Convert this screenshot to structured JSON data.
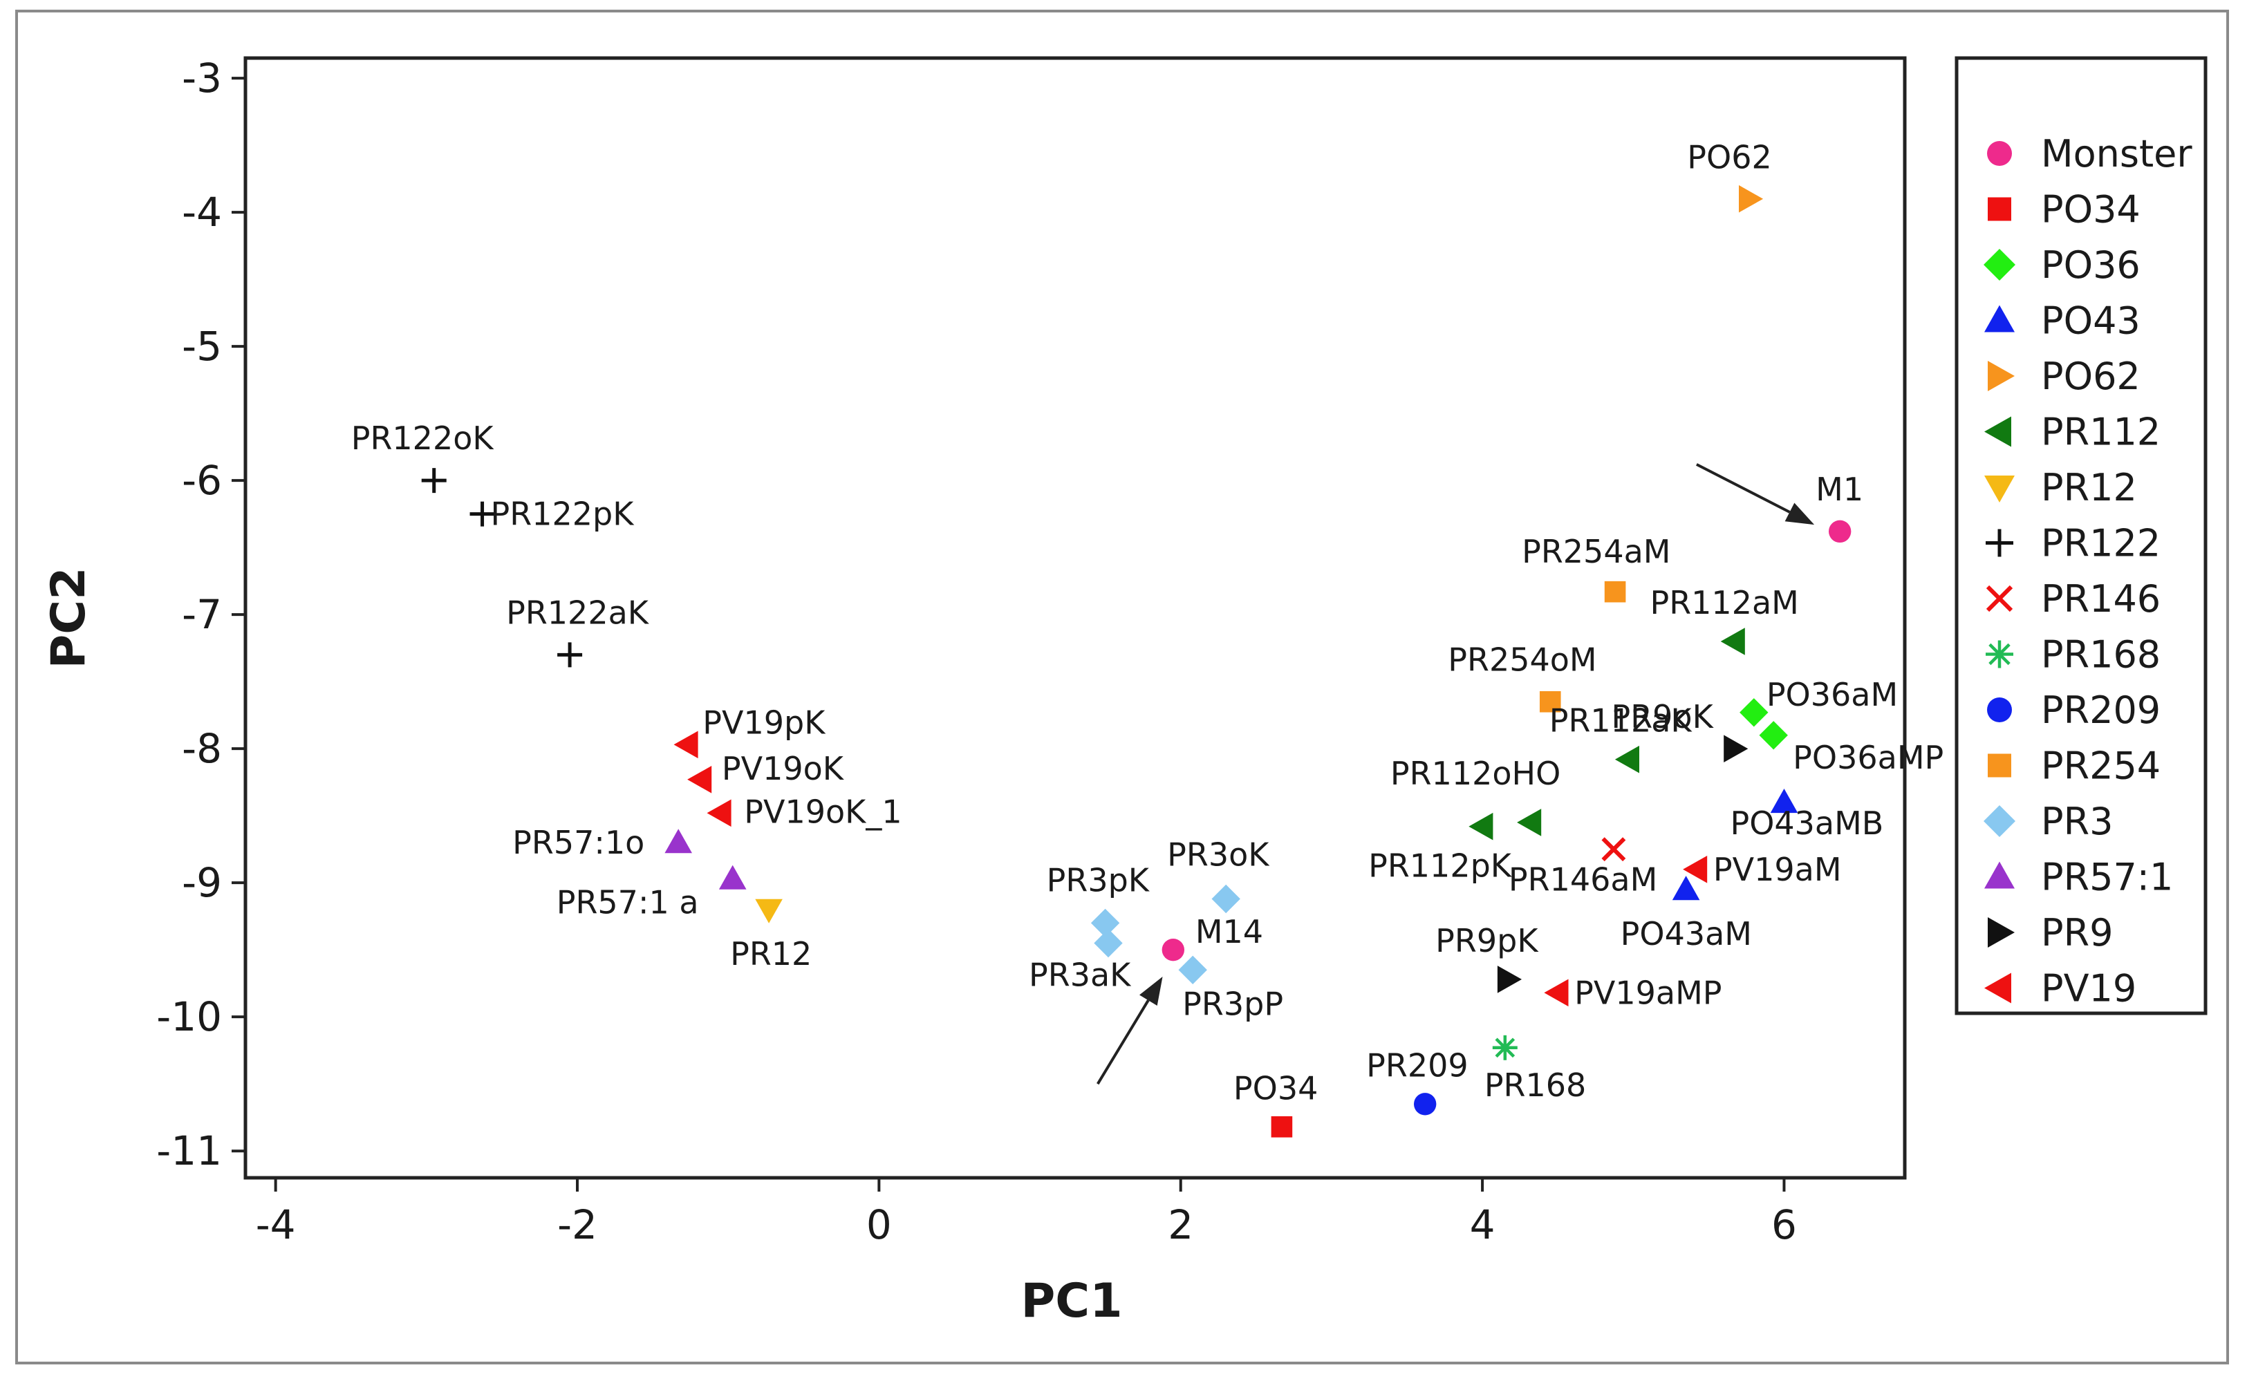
{
  "chart_data": {
    "type": "scatter",
    "title": "",
    "xlabel": "PC1",
    "ylabel": "PC2",
    "xlim": [
      -4.2,
      6.8
    ],
    "ylim": [
      -11.2,
      -2.85
    ],
    "xticks": [
      -4,
      -2,
      0,
      2,
      4,
      6
    ],
    "yticks": [
      -3,
      -4,
      -5,
      -6,
      -7,
      -8,
      -9,
      -10,
      -11
    ],
    "grid": false,
    "legend_position": "right",
    "series": [
      {
        "name": "Monster",
        "color": "#ee2a8c",
        "marker": "circle",
        "points": [
          {
            "x": 6.37,
            "y": -6.38,
            "label": "M1"
          },
          {
            "x": 1.95,
            "y": -9.5,
            "label": "M14"
          }
        ]
      },
      {
        "name": "PO34",
        "color": "#ee1111",
        "marker": "square",
        "points": [
          {
            "x": 2.67,
            "y": -10.82,
            "label": "PO34"
          }
        ]
      },
      {
        "name": "PO36",
        "color": "#22ee11",
        "marker": "diamond",
        "points": [
          {
            "x": 5.8,
            "y": -7.73,
            "label": "PO36aM"
          },
          {
            "x": 5.93,
            "y": -7.9,
            "label": "PO36aMP"
          }
        ]
      },
      {
        "name": "PO43",
        "color": "#1122ee",
        "marker": "triangle-up",
        "points": [
          {
            "x": 6.0,
            "y": -8.4,
            "label": "PO43aMB"
          },
          {
            "x": 5.35,
            "y": -9.05,
            "label": "PO43aM"
          }
        ]
      },
      {
        "name": "PO62",
        "color": "#f7941d",
        "marker": "triangle-right",
        "points": [
          {
            "x": 5.77,
            "y": -3.9,
            "label": "PO62"
          }
        ]
      },
      {
        "name": "PR112",
        "color": "#117a11",
        "marker": "triangle-left",
        "points": [
          {
            "x": 5.67,
            "y": -7.2,
            "label": "PR112aM"
          },
          {
            "x": 4.97,
            "y": -8.08,
            "label": "PR112aK"
          },
          {
            "x": 4.32,
            "y": -8.55,
            "label": "PR112oHO"
          },
          {
            "x": 4.0,
            "y": -8.58,
            "label": "PR112pK"
          }
        ]
      },
      {
        "name": "PR12",
        "color": "#f5b915",
        "marker": "triangle-down",
        "points": [
          {
            "x": -0.73,
            "y": -9.2,
            "label": "PR12"
          }
        ]
      },
      {
        "name": "PR122",
        "color": "#111111",
        "marker": "plus",
        "points": [
          {
            "x": -2.95,
            "y": -6.0,
            "label": "PR122oK"
          },
          {
            "x": -2.63,
            "y": -6.25,
            "label": "PR122pK"
          },
          {
            "x": -2.05,
            "y": -7.3,
            "label": "PR122aK"
          }
        ]
      },
      {
        "name": "PR146",
        "color": "#ee1111",
        "marker": "x",
        "points": [
          {
            "x": 4.87,
            "y": -8.75,
            "label": "PR146aM"
          }
        ]
      },
      {
        "name": "PR168",
        "color": "#22bb55",
        "marker": "star",
        "points": [
          {
            "x": 4.15,
            "y": -10.23,
            "label": "PR168"
          }
        ]
      },
      {
        "name": "PR209",
        "color": "#1122ee",
        "marker": "circle",
        "points": [
          {
            "x": 3.62,
            "y": -10.65,
            "label": "PR209"
          }
        ]
      },
      {
        "name": "PR254",
        "color": "#f7941d",
        "marker": "square",
        "points": [
          {
            "x": 4.88,
            "y": -6.83,
            "label": "PR254aM"
          },
          {
            "x": 4.45,
            "y": -7.65,
            "label": "PR254oM"
          }
        ]
      },
      {
        "name": "PR3",
        "color": "#88c8f0",
        "marker": "diamond",
        "points": [
          {
            "x": 1.5,
            "y": -9.3,
            "label": "PR3pK"
          },
          {
            "x": 2.3,
            "y": -9.12,
            "label": "PR3oK"
          },
          {
            "x": 1.52,
            "y": -9.45,
            "label": "PR3aK"
          },
          {
            "x": 2.08,
            "y": -9.65,
            "label": "PR3pP"
          }
        ]
      },
      {
        "name": "PR57:1",
        "color": "#9933cc",
        "marker": "triangle-up",
        "points": [
          {
            "x": -1.33,
            "y": -8.7,
            "label": "PR57:1o"
          },
          {
            "x": -0.97,
            "y": -8.97,
            "label": "PR57:1 a"
          }
        ]
      },
      {
        "name": "PR9",
        "color": "#111111",
        "marker": "triangle-right",
        "points": [
          {
            "x": 5.67,
            "y": -8.0,
            "label": "PR9oK"
          },
          {
            "x": 4.17,
            "y": -9.72,
            "label": "PR9pK"
          }
        ]
      },
      {
        "name": "PV19",
        "color": "#ee1111",
        "marker": "triangle-left",
        "points": [
          {
            "x": -1.27,
            "y": -7.97,
            "label": "PV19pK"
          },
          {
            "x": -1.18,
            "y": -8.23,
            "label": "PV19oK"
          },
          {
            "x": -1.05,
            "y": -8.48,
            "label": "PV19oK_1"
          },
          {
            "x": 5.42,
            "y": -8.9,
            "label": "PV19aM"
          },
          {
            "x": 4.5,
            "y": -9.82,
            "label": "PV19aMP"
          }
        ]
      }
    ],
    "arrows": [
      {
        "from": [
          5.42,
          -5.88
        ],
        "to": [
          6.2,
          -6.33
        ],
        "target": "M1"
      },
      {
        "from": [
          1.45,
          -10.5
        ],
        "to": [
          1.88,
          -9.7
        ],
        "target": "M14"
      }
    ]
  }
}
